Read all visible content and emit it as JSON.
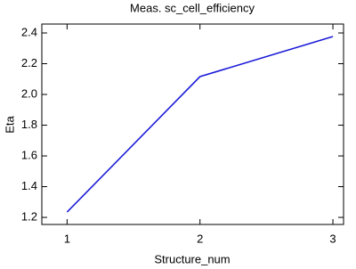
{
  "chart_data": {
    "type": "line",
    "title": "Meas. sc_cell_efficiency",
    "x_label": "Structure_num",
    "y_label": "Eta",
    "x": [
      1,
      2,
      3
    ],
    "series": [
      {
        "name": "sc_cell_efficiency",
        "color": "#1c1cd8",
        "values": [
          1.235,
          2.116,
          2.377
        ]
      }
    ],
    "xlim": [
      0.81,
      3.08
    ],
    "ylim": [
      1.154,
      2.458
    ],
    "xticks": [
      1,
      2,
      3
    ],
    "yticks": [
      1.2,
      1.4,
      1.6,
      1.8,
      {
        "value": 2.0,
        "label": "2.0"
      },
      2.2,
      2.4
    ]
  }
}
